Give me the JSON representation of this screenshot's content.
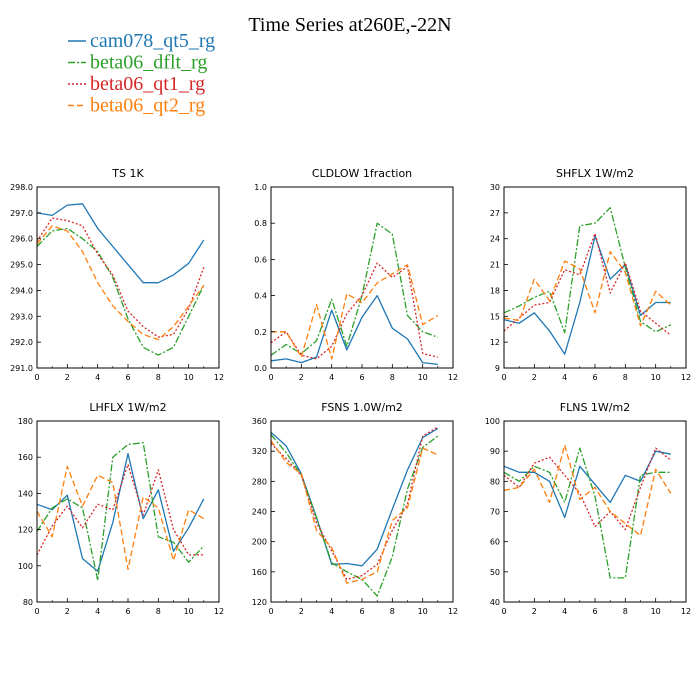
{
  "title": "Time Series at260E,-22N",
  "legend": [
    {
      "name": "cam078_qt5_rg",
      "color": "#1f77b4",
      "dash": "solid"
    },
    {
      "name": "beta06_dflt_rg",
      "color": "#2ca02c",
      "dash": "dashdot"
    },
    {
      "name": "beta06_qt1_rg",
      "color": "#d62728",
      "dash": "dot"
    },
    {
      "name": "beta06_qt2_rg",
      "color": "#ff7f0e",
      "dash": "dash"
    }
  ],
  "chart_data": [
    {
      "type": "line",
      "panel_title": "TS    1K",
      "x": [
        0,
        1,
        2,
        3,
        4,
        5,
        6,
        7,
        8,
        9,
        10,
        11
      ],
      "xlim": [
        0,
        12
      ],
      "xticks": [
        "0",
        "2",
        "4",
        "6",
        "8",
        "10",
        "12"
      ],
      "ylim": [
        291,
        298
      ],
      "yticks": [
        "291.0",
        "292.0",
        "293.0",
        "294.0",
        "295.0",
        "296.0",
        "297.0",
        "298.0"
      ],
      "series": [
        {
          "name": "cam078_qt5_rg",
          "values": [
            297.0,
            296.9,
            297.3,
            297.35,
            296.4,
            295.7,
            295.0,
            294.3,
            294.3,
            294.6,
            295.05,
            295.95
          ]
        },
        {
          "name": "beta06_dflt_rg",
          "values": [
            295.7,
            296.3,
            296.4,
            296.0,
            295.5,
            294.5,
            292.9,
            291.8,
            291.5,
            291.8,
            293.0,
            294.2
          ]
        },
        {
          "name": "beta06_qt1_rg",
          "values": [
            295.9,
            296.8,
            296.7,
            296.5,
            295.4,
            294.6,
            293.2,
            292.6,
            292.2,
            292.3,
            293.3,
            294.9
          ]
        },
        {
          "name": "beta06_qt2_rg",
          "values": [
            295.8,
            296.5,
            296.3,
            295.5,
            294.3,
            293.4,
            292.8,
            292.3,
            292.1,
            292.6,
            293.4,
            294.2
          ]
        }
      ]
    },
    {
      "type": "line",
      "panel_title": "CLDLOW    1fraction",
      "x": [
        0,
        1,
        2,
        3,
        4,
        5,
        6,
        7,
        8,
        9,
        10,
        11
      ],
      "xlim": [
        0,
        12
      ],
      "xticks": [
        "0",
        "2",
        "4",
        "6",
        "8",
        "10",
        "12"
      ],
      "ylim": [
        0,
        1
      ],
      "yticks": [
        "0.0",
        "0.2",
        "0.4",
        "0.6",
        "0.8",
        "1.0"
      ],
      "series": [
        {
          "name": "cam078_qt5_rg",
          "values": [
            0.04,
            0.05,
            0.03,
            0.06,
            0.32,
            0.1,
            0.28,
            0.4,
            0.22,
            0.16,
            0.03,
            0.02
          ]
        },
        {
          "name": "beta06_dflt_rg",
          "values": [
            0.07,
            0.13,
            0.08,
            0.15,
            0.38,
            0.12,
            0.4,
            0.8,
            0.74,
            0.29,
            0.2,
            0.17
          ]
        },
        {
          "name": "beta06_qt1_rg",
          "values": [
            0.14,
            0.2,
            0.07,
            0.05,
            0.12,
            0.3,
            0.4,
            0.58,
            0.5,
            0.56,
            0.08,
            0.06
          ]
        },
        {
          "name": "beta06_qt2_rg",
          "values": [
            0.2,
            0.2,
            0.06,
            0.35,
            0.05,
            0.41,
            0.36,
            0.47,
            0.52,
            0.57,
            0.24,
            0.29
          ]
        }
      ]
    },
    {
      "type": "line",
      "panel_title": "SHFLX    1W/m2",
      "x": [
        0,
        1,
        2,
        3,
        4,
        5,
        6,
        7,
        8,
        9,
        10,
        11
      ],
      "xlim": [
        0,
        12
      ],
      "xticks": [
        "0",
        "2",
        "4",
        "6",
        "8",
        "10",
        "12"
      ],
      "ylim": [
        9,
        30
      ],
      "yticks": [
        "9",
        "12",
        "15",
        "18",
        "21",
        "24",
        "27",
        "30"
      ],
      "series": [
        {
          "name": "cam078_qt5_rg",
          "values": [
            14.6,
            14.2,
            15.4,
            13.3,
            10.6,
            16.6,
            24.3,
            19.3,
            21.0,
            15.1,
            16.6,
            16.6
          ]
        },
        {
          "name": "beta06_dflt_rg",
          "values": [
            15.4,
            16.2,
            17.2,
            17.9,
            13.1,
            25.5,
            25.8,
            27.6,
            20.7,
            14.4,
            13.2,
            14.0
          ]
        },
        {
          "name": "beta06_qt1_rg",
          "values": [
            13.3,
            14.8,
            16.3,
            16.6,
            20.4,
            19.8,
            24.6,
            17.7,
            21.2,
            15.6,
            14.2,
            12.8
          ]
        },
        {
          "name": "beta06_qt2_rg",
          "values": [
            14.8,
            14.5,
            19.3,
            16.8,
            21.4,
            20.5,
            15.4,
            22.5,
            20.1,
            13.9,
            17.9,
            16.3
          ]
        }
      ]
    },
    {
      "type": "line",
      "panel_title": "LHFLX    1W/m2",
      "x": [
        0,
        1,
        2,
        3,
        4,
        5,
        6,
        7,
        8,
        9,
        10,
        11
      ],
      "xlim": [
        0,
        12
      ],
      "xticks": [
        "0",
        "2",
        "4",
        "6",
        "8",
        "10",
        "12"
      ],
      "ylim": [
        80,
        180
      ],
      "yticks": [
        "80",
        "100",
        "120",
        "140",
        "160",
        "180"
      ],
      "series": [
        {
          "name": "cam078_qt5_rg",
          "values": [
            134,
            131,
            139,
            104,
            97,
            124,
            162,
            126,
            142,
            108,
            121,
            137
          ]
        },
        {
          "name": "beta06_dflt_rg",
          "values": [
            119,
            132,
            137,
            132,
            92,
            160,
            167,
            168,
            116,
            113,
            102,
            111
          ]
        },
        {
          "name": "beta06_qt1_rg",
          "values": [
            106,
            122,
            133,
            121,
            134,
            131,
            156,
            128,
            153,
            120,
            106,
            106
          ]
        },
        {
          "name": "beta06_qt2_rg",
          "values": [
            130,
            116,
            155,
            133,
            150,
            146,
            98,
            138,
            132,
            103,
            131,
            126
          ]
        }
      ]
    },
    {
      "type": "line",
      "panel_title": "FSNS    1.0W/m2",
      "x": [
        0,
        1,
        2,
        3,
        4,
        5,
        6,
        7,
        8,
        9,
        10,
        11
      ],
      "xlim": [
        0,
        12
      ],
      "xticks": [
        "0",
        "2",
        "4",
        "6",
        "8",
        "10",
        "12"
      ],
      "ylim": [
        120,
        360
      ],
      "yticks": [
        "120",
        "160",
        "200",
        "240",
        "280",
        "320",
        "360"
      ],
      "series": [
        {
          "name": "cam078_qt5_rg",
          "values": [
            345,
            327,
            290,
            232,
            170,
            171,
            168,
            190,
            243,
            295,
            338,
            350
          ]
        },
        {
          "name": "beta06_dflt_rg",
          "values": [
            342,
            318,
            288,
            232,
            172,
            160,
            150,
            128,
            180,
            270,
            325,
            340
          ]
        },
        {
          "name": "beta06_qt1_rg",
          "values": [
            330,
            310,
            288,
            225,
            188,
            150,
            155,
            170,
            215,
            250,
            340,
            352
          ]
        },
        {
          "name": "beta06_qt2_rg",
          "values": [
            334,
            305,
            290,
            215,
            192,
            145,
            150,
            160,
            228,
            245,
            324,
            315
          ]
        }
      ]
    },
    {
      "type": "line",
      "panel_title": "FLNS    1W/m2",
      "x": [
        0,
        1,
        2,
        3,
        4,
        5,
        6,
        7,
        8,
        9,
        10,
        11
      ],
      "xlim": [
        0,
        12
      ],
      "xticks": [
        "0",
        "2",
        "4",
        "6",
        "8",
        "10",
        "12"
      ],
      "ylim": [
        40,
        100
      ],
      "yticks": [
        "40",
        "50",
        "60",
        "70",
        "80",
        "90",
        "100"
      ],
      "series": [
        {
          "name": "cam078_qt5_rg",
          "values": [
            85,
            83,
            83,
            80,
            68,
            85,
            79,
            73,
            82,
            80,
            90,
            89
          ]
        },
        {
          "name": "beta06_dflt_rg",
          "values": [
            83,
            80,
            85,
            83,
            73,
            91,
            75,
            48,
            48,
            82,
            83,
            83
          ]
        },
        {
          "name": "beta06_qt1_rg",
          "values": [
            82,
            78,
            86,
            88,
            82,
            76,
            65,
            70,
            64,
            78,
            91,
            87
          ]
        },
        {
          "name": "beta06_qt2_rg",
          "values": [
            77,
            78,
            84,
            73,
            92,
            74,
            78,
            70,
            66,
            62,
            84,
            76
          ]
        }
      ]
    }
  ]
}
